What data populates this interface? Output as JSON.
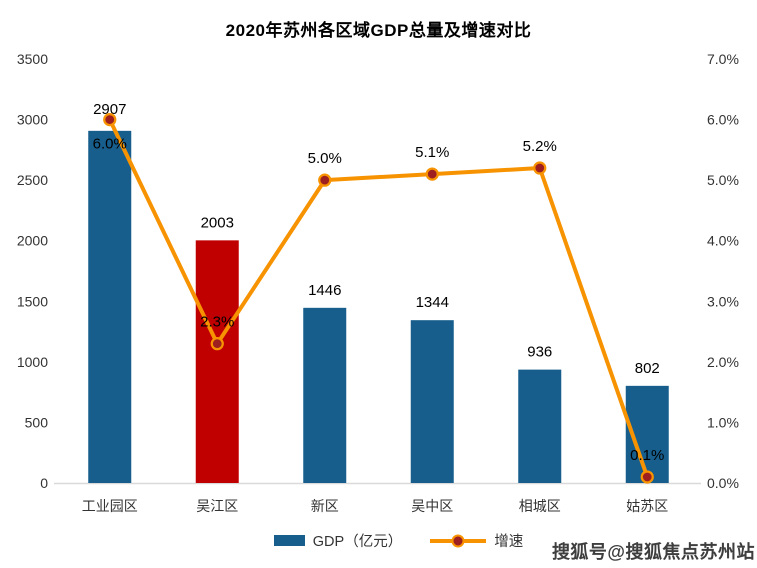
{
  "title": "2020年苏州各区域GDP总量及增速对比",
  "chart_data": {
    "type": "bar",
    "subtype": "bar-line-combo",
    "categories": [
      "工业园区",
      "吴江区",
      "新区",
      "吴中区",
      "相城区",
      "姑苏区"
    ],
    "series": [
      {
        "name": "GDP（亿元）",
        "type": "bar",
        "axis": "left",
        "values": [
          2907,
          2003,
          1446,
          1344,
          936,
          802
        ],
        "labels": [
          "2907",
          "2003",
          "1446",
          "1344",
          "936",
          "802"
        ],
        "bar_colors": [
          "#175E8D",
          "#C00000",
          "#175E8D",
          "#175E8D",
          "#175E8D",
          "#175E8D"
        ]
      },
      {
        "name": "增速",
        "type": "line",
        "axis": "right",
        "values": [
          6.0,
          2.3,
          5.0,
          5.1,
          5.2,
          0.1
        ],
        "labels": [
          "6.0%",
          "2.3%",
          "5.0%",
          "5.1%",
          "5.2%",
          "0.1%"
        ]
      }
    ],
    "left_axis": {
      "min": 0,
      "max": 3500,
      "step": 500,
      "ticks": [
        "3500",
        "3000",
        "2500",
        "2000",
        "1500",
        "1000",
        "500",
        "0"
      ]
    },
    "right_axis": {
      "min": 0,
      "max": 7,
      "step": 1,
      "ticks": [
        "7.0%",
        "6.0%",
        "5.0%",
        "4.0%",
        "3.0%",
        "2.0%",
        "1.0%",
        "0.0%"
      ]
    },
    "grid": false,
    "legend_position": "bottom"
  },
  "colors": {
    "bar_default": "#175E8D",
    "bar_highlight": "#C00000",
    "line": "#F79300",
    "marker": "#9E1F1F",
    "axis_line": "#D9D9D9",
    "tick_text": "#333333",
    "label_text": "#000000"
  },
  "legend": {
    "items": [
      {
        "label": "GDP（亿元）",
        "swatch": "bar"
      },
      {
        "label": "增速",
        "swatch": "line"
      }
    ]
  },
  "watermark": "搜狐号@搜狐焦点苏州站"
}
